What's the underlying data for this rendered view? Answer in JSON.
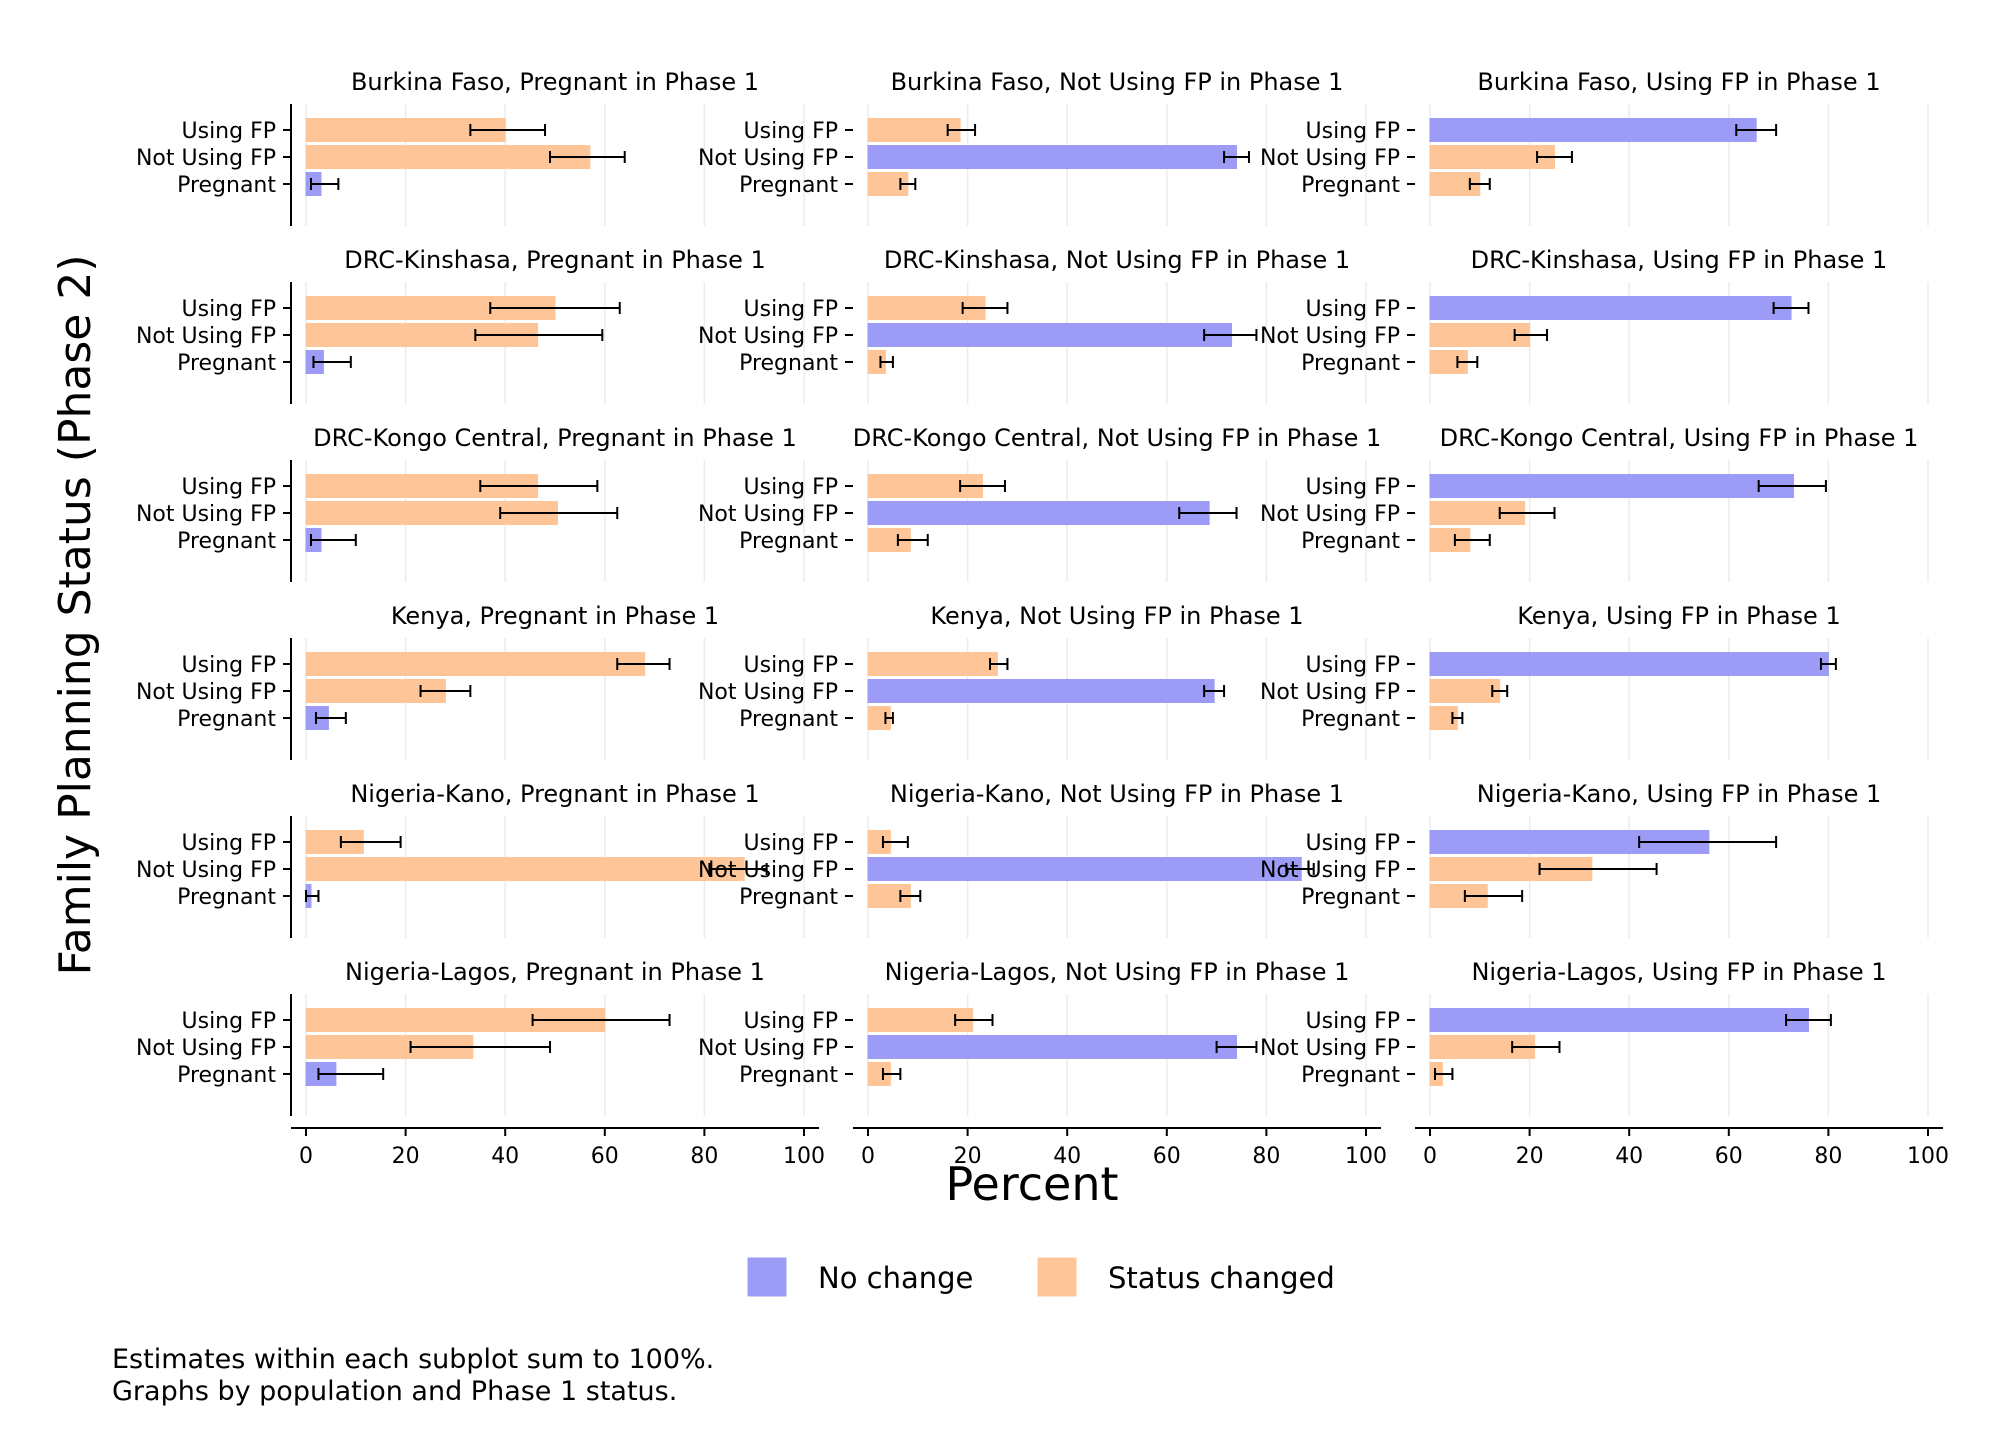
{
  "chart_data": {
    "type": "bar",
    "orientation": "horizontal",
    "y_title": "Family Planning Status (Phase 2)",
    "x_title": "Percent",
    "xlim": [
      0,
      100
    ],
    "x_ticks": [
      0,
      20,
      40,
      60,
      80,
      100
    ],
    "grid": true,
    "categories": [
      "Using FP",
      "Not Using FP",
      "Pregnant"
    ],
    "legend": [
      {
        "key": "no_change",
        "label": "No change",
        "color": "#9c9cf7"
      },
      {
        "key": "changed",
        "label": "Status changed",
        "color": "#fec698"
      }
    ],
    "notes": [
      "Estimates within each subplot sum to 100%.",
      "Graphs by population and Phase 1 status."
    ],
    "panels": [
      {
        "title": "Burkina Faso, Pregnant in Phase 1",
        "bars": [
          {
            "category": "Using FP",
            "value": 40,
            "ci": [
              33,
              48
            ],
            "type": "changed"
          },
          {
            "category": "Not Using FP",
            "value": 57,
            "ci": [
              49,
              64
            ],
            "type": "changed"
          },
          {
            "category": "Pregnant",
            "value": 3,
            "ci": [
              1,
              6.5
            ],
            "type": "no_change"
          }
        ]
      },
      {
        "title": "Burkina Faso, Not Using FP in Phase 1",
        "bars": [
          {
            "category": "Using FP",
            "value": 18.5,
            "ci": [
              16,
              21.5
            ],
            "type": "changed"
          },
          {
            "category": "Not Using FP",
            "value": 74,
            "ci": [
              71.5,
              76.5
            ],
            "type": "no_change"
          },
          {
            "category": "Pregnant",
            "value": 8,
            "ci": [
              6.5,
              9.5
            ],
            "type": "changed"
          }
        ]
      },
      {
        "title": "Burkina Faso, Using FP in Phase 1",
        "bars": [
          {
            "category": "Using FP",
            "value": 65.5,
            "ci": [
              61.5,
              69.5
            ],
            "type": "no_change"
          },
          {
            "category": "Not Using FP",
            "value": 25,
            "ci": [
              21.5,
              28.5
            ],
            "type": "changed"
          },
          {
            "category": "Pregnant",
            "value": 10,
            "ci": [
              8,
              12
            ],
            "type": "changed"
          }
        ]
      },
      {
        "title": "DRC-Kinshasa, Pregnant in Phase 1",
        "bars": [
          {
            "category": "Using FP",
            "value": 50,
            "ci": [
              37,
              63
            ],
            "type": "changed"
          },
          {
            "category": "Not Using FP",
            "value": 46.5,
            "ci": [
              34,
              59.5
            ],
            "type": "changed"
          },
          {
            "category": "Pregnant",
            "value": 3.5,
            "ci": [
              1.5,
              9
            ],
            "type": "no_change"
          }
        ]
      },
      {
        "title": "DRC-Kinshasa, Not Using FP in Phase 1",
        "bars": [
          {
            "category": "Using FP",
            "value": 23.5,
            "ci": [
              19,
              28
            ],
            "type": "changed"
          },
          {
            "category": "Not Using FP",
            "value": 73,
            "ci": [
              67.5,
              78
            ],
            "type": "no_change"
          },
          {
            "category": "Pregnant",
            "value": 3.5,
            "ci": [
              2.5,
              5
            ],
            "type": "changed"
          }
        ]
      },
      {
        "title": "DRC-Kinshasa, Using FP in Phase 1",
        "bars": [
          {
            "category": "Using FP",
            "value": 72.5,
            "ci": [
              69,
              76
            ],
            "type": "no_change"
          },
          {
            "category": "Not Using FP",
            "value": 20,
            "ci": [
              17,
              23.5
            ],
            "type": "changed"
          },
          {
            "category": "Pregnant",
            "value": 7.5,
            "ci": [
              5.5,
              9.5
            ],
            "type": "changed"
          }
        ]
      },
      {
        "title": "DRC-Kongo Central, Pregnant in Phase 1",
        "bars": [
          {
            "category": "Using FP",
            "value": 46.5,
            "ci": [
              35,
              58.5
            ],
            "type": "changed"
          },
          {
            "category": "Not Using FP",
            "value": 50.5,
            "ci": [
              39,
              62.5
            ],
            "type": "changed"
          },
          {
            "category": "Pregnant",
            "value": 3,
            "ci": [
              1,
              10
            ],
            "type": "no_change"
          }
        ]
      },
      {
        "title": "DRC-Kongo Central, Not Using FP in Phase 1",
        "bars": [
          {
            "category": "Using FP",
            "value": 23,
            "ci": [
              18.5,
              27.5
            ],
            "type": "changed"
          },
          {
            "category": "Not Using FP",
            "value": 68.5,
            "ci": [
              62.5,
              74
            ],
            "type": "no_change"
          },
          {
            "category": "Pregnant",
            "value": 8.5,
            "ci": [
              6,
              12
            ],
            "type": "changed"
          }
        ]
      },
      {
        "title": "DRC-Kongo Central, Using FP in Phase 1",
        "bars": [
          {
            "category": "Using FP",
            "value": 73,
            "ci": [
              66,
              79.5
            ],
            "type": "no_change"
          },
          {
            "category": "Not Using FP",
            "value": 19,
            "ci": [
              14,
              25
            ],
            "type": "changed"
          },
          {
            "category": "Pregnant",
            "value": 8,
            "ci": [
              5,
              12
            ],
            "type": "changed"
          }
        ]
      },
      {
        "title": "Kenya, Pregnant in Phase 1",
        "bars": [
          {
            "category": "Using FP",
            "value": 68,
            "ci": [
              62.5,
              73
            ],
            "type": "changed"
          },
          {
            "category": "Not Using FP",
            "value": 28,
            "ci": [
              23,
              33
            ],
            "type": "changed"
          },
          {
            "category": "Pregnant",
            "value": 4.5,
            "ci": [
              2,
              8
            ],
            "type": "no_change"
          }
        ]
      },
      {
        "title": "Kenya, Not Using FP in Phase 1",
        "bars": [
          {
            "category": "Using FP",
            "value": 26,
            "ci": [
              24.5,
              28
            ],
            "type": "changed"
          },
          {
            "category": "Not Using FP",
            "value": 69.5,
            "ci": [
              67.5,
              71.5
            ],
            "type": "no_change"
          },
          {
            "category": "Pregnant",
            "value": 4.5,
            "ci": [
              3.5,
              5
            ],
            "type": "changed"
          }
        ]
      },
      {
        "title": "Kenya, Using FP in Phase 1",
        "bars": [
          {
            "category": "Using FP",
            "value": 80,
            "ci": [
              78.5,
              81.5
            ],
            "type": "no_change"
          },
          {
            "category": "Not Using FP",
            "value": 14,
            "ci": [
              12.5,
              15.5
            ],
            "type": "changed"
          },
          {
            "category": "Pregnant",
            "value": 5.5,
            "ci": [
              4.5,
              6.5
            ],
            "type": "changed"
          }
        ]
      },
      {
        "title": "Nigeria-Kano, Pregnant in Phase 1",
        "bars": [
          {
            "category": "Using FP",
            "value": 11.5,
            "ci": [
              7,
              19
            ],
            "type": "changed"
          },
          {
            "category": "Not Using FP",
            "value": 88,
            "ci": [
              81,
              92.5
            ],
            "type": "changed"
          },
          {
            "category": "Pregnant",
            "value": 1,
            "ci": [
              0,
              2.5
            ],
            "type": "no_change"
          }
        ]
      },
      {
        "title": "Nigeria-Kano, Not Using FP in Phase 1",
        "bars": [
          {
            "category": "Using FP",
            "value": 4.5,
            "ci": [
              3,
              8
            ],
            "type": "changed"
          },
          {
            "category": "Not Using FP",
            "value": 87,
            "ci": [
              84,
              89.5
            ],
            "type": "no_change"
          },
          {
            "category": "Pregnant",
            "value": 8.5,
            "ci": [
              6.5,
              10.5
            ],
            "type": "changed"
          }
        ]
      },
      {
        "title": "Nigeria-Kano, Using FP in Phase 1",
        "bars": [
          {
            "category": "Using FP",
            "value": 56,
            "ci": [
              42,
              69.5
            ],
            "type": "no_change"
          },
          {
            "category": "Not Using FP",
            "value": 32.5,
            "ci": [
              22,
              45.5
            ],
            "type": "changed"
          },
          {
            "category": "Pregnant",
            "value": 11.5,
            "ci": [
              7,
              18.5
            ],
            "type": "changed"
          }
        ]
      },
      {
        "title": "Nigeria-Lagos, Pregnant in Phase 1",
        "bars": [
          {
            "category": "Using FP",
            "value": 60,
            "ci": [
              45.5,
              73
            ],
            "type": "changed"
          },
          {
            "category": "Not Using FP",
            "value": 33.5,
            "ci": [
              21,
              49
            ],
            "type": "changed"
          },
          {
            "category": "Pregnant",
            "value": 6,
            "ci": [
              2.5,
              15.5
            ],
            "type": "no_change"
          }
        ]
      },
      {
        "title": "Nigeria-Lagos, Not Using FP in Phase 1",
        "bars": [
          {
            "category": "Using FP",
            "value": 21,
            "ci": [
              17.5,
              25
            ],
            "type": "changed"
          },
          {
            "category": "Not Using FP",
            "value": 74,
            "ci": [
              70,
              78
            ],
            "type": "no_change"
          },
          {
            "category": "Pregnant",
            "value": 4.5,
            "ci": [
              3,
              6.5
            ],
            "type": "changed"
          }
        ]
      },
      {
        "title": "Nigeria-Lagos, Using FP in Phase 1",
        "bars": [
          {
            "category": "Using FP",
            "value": 76,
            "ci": [
              71.5,
              80.5
            ],
            "type": "no_change"
          },
          {
            "category": "Not Using FP",
            "value": 21,
            "ci": [
              16.5,
              26
            ],
            "type": "changed"
          },
          {
            "category": "Pregnant",
            "value": 2.5,
            "ci": [
              1,
              4.5
            ],
            "type": "changed"
          }
        ]
      }
    ]
  }
}
